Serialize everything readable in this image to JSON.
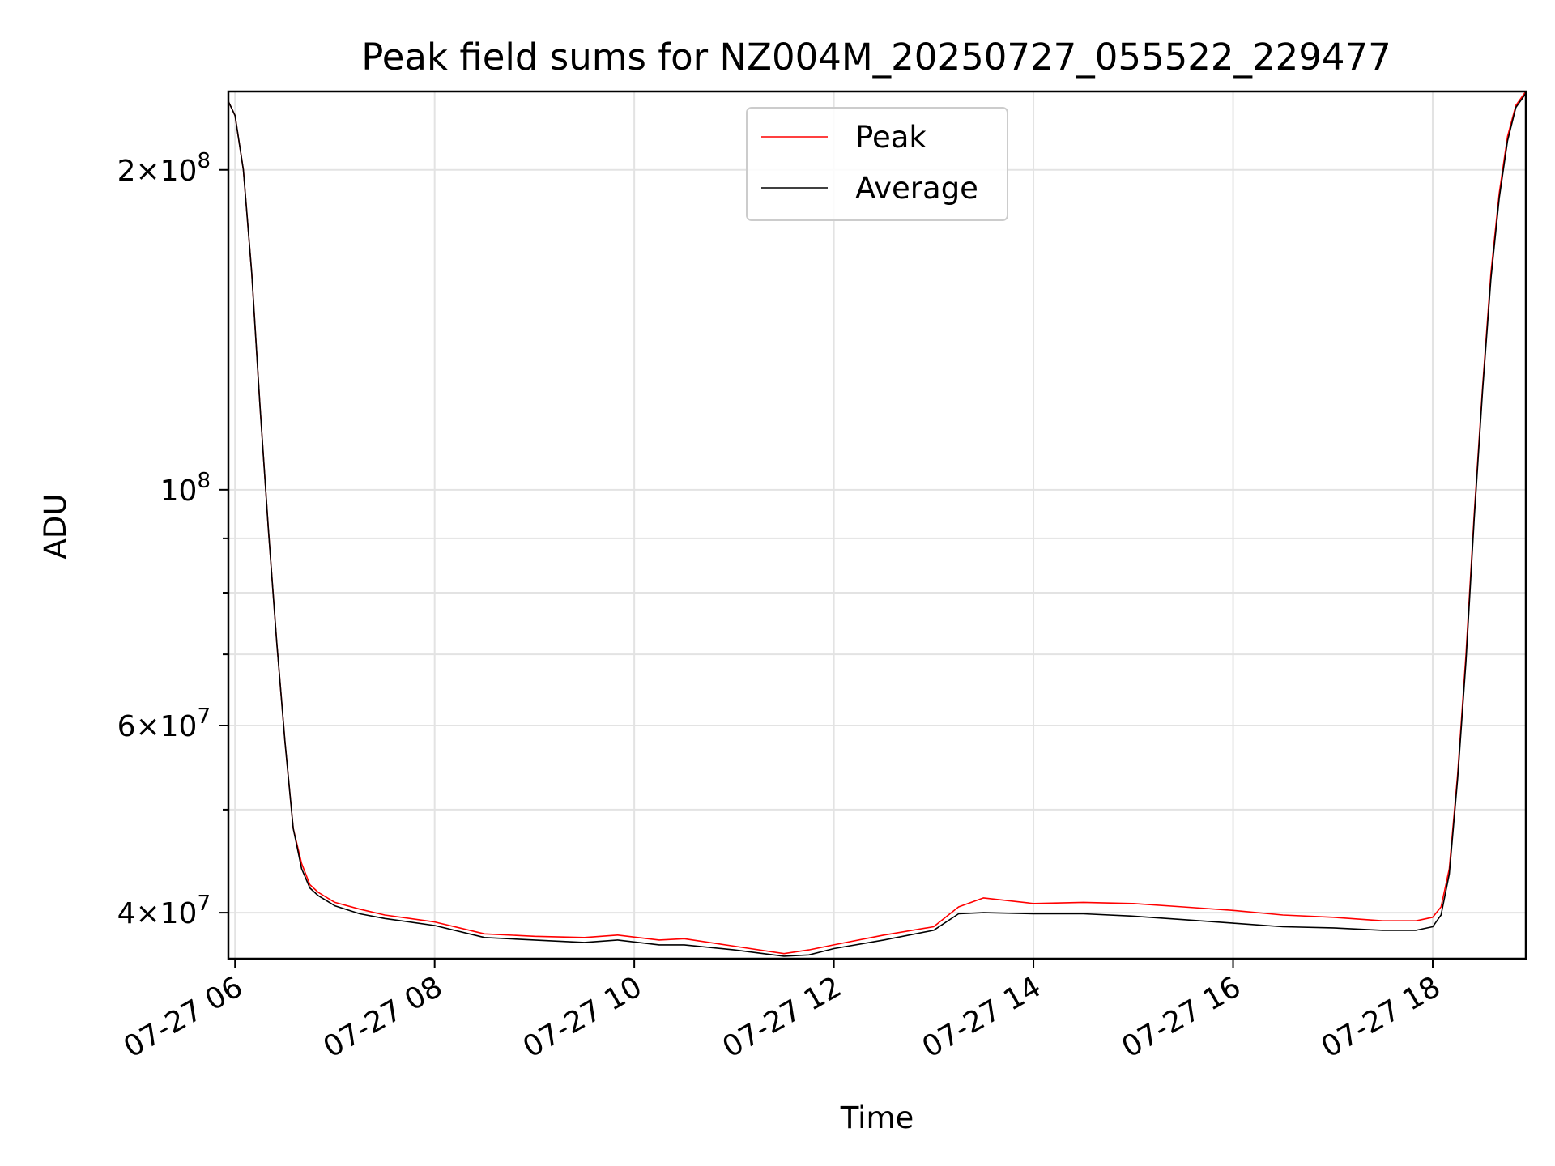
{
  "chart_data": {
    "type": "line",
    "title": "Peak field sums for NZ004M_20250727_055522_229477",
    "xlabel": "Time",
    "ylabel": "ADU",
    "yscale": "log",
    "grid": true,
    "legend_placement": "upper center",
    "x_tick_labels": [
      "07-27 06",
      "07-27 08",
      "07-27 10",
      "07-27 12",
      "07-27 14",
      "07-27 16",
      "07-27 18"
    ],
    "xlim": [
      "2025-07-27T05:56",
      "2025-07-27T18:56"
    ],
    "y_tick_labels": [
      {
        "value": 40000000,
        "mantissa": "4",
        "exponent": "7"
      },
      {
        "value": 60000000,
        "mantissa": "6",
        "exponent": "7"
      },
      {
        "value": 100000000,
        "mantissa": "",
        "exponent": "8"
      },
      {
        "value": 200000000,
        "mantissa": "2",
        "exponent": "8"
      }
    ],
    "ylim": [
      36200000,
      237000000
    ],
    "series": [
      {
        "name": "Peak",
        "color": "#ff0000",
        "x": [
          "2025-07-27T05:56",
          "2025-07-27T06:00",
          "2025-07-27T06:05",
          "2025-07-27T06:10",
          "2025-07-27T06:15",
          "2025-07-27T06:20",
          "2025-07-27T06:25",
          "2025-07-27T06:30",
          "2025-07-27T06:35",
          "2025-07-27T06:40",
          "2025-07-27T06:45",
          "2025-07-27T06:50",
          "2025-07-27T07:00",
          "2025-07-27T07:15",
          "2025-07-27T07:30",
          "2025-07-27T08:00",
          "2025-07-27T08:30",
          "2025-07-27T09:00",
          "2025-07-27T09:30",
          "2025-07-27T09:50",
          "2025-07-27T10:15",
          "2025-07-27T10:30",
          "2025-07-27T11:00",
          "2025-07-27T11:30",
          "2025-07-27T11:45",
          "2025-07-27T12:00",
          "2025-07-27T12:30",
          "2025-07-27T13:00",
          "2025-07-27T13:15",
          "2025-07-27T13:30",
          "2025-07-27T14:00",
          "2025-07-27T14:30",
          "2025-07-27T15:00",
          "2025-07-27T15:30",
          "2025-07-27T16:00",
          "2025-07-27T16:30",
          "2025-07-27T17:00",
          "2025-07-27T17:30",
          "2025-07-27T17:50",
          "2025-07-27T18:00",
          "2025-07-27T18:05",
          "2025-07-27T18:10",
          "2025-07-27T18:15",
          "2025-07-27T18:20",
          "2025-07-27T18:25",
          "2025-07-27T18:30",
          "2025-07-27T18:35",
          "2025-07-27T18:40",
          "2025-07-27T18:45",
          "2025-07-27T18:50",
          "2025-07-27T18:56"
        ],
        "y": [
          232000000,
          225000000,
          200000000,
          160000000,
          120000000,
          92000000,
          72000000,
          58000000,
          48000000,
          44500000,
          42500000,
          41800000,
          40900000,
          40300000,
          39800000,
          39200000,
          38200000,
          38000000,
          37900000,
          38100000,
          37700000,
          37800000,
          37200000,
          36600000,
          36900000,
          37300000,
          38100000,
          38800000,
          40500000,
          41300000,
          40800000,
          40900000,
          40800000,
          40500000,
          40200000,
          39800000,
          39600000,
          39300000,
          39300000,
          39600000,
          40500000,
          44000000,
          54000000,
          70000000,
          95000000,
          125000000,
          160000000,
          190000000,
          215000000,
          230000000,
          237000000
        ]
      },
      {
        "name": "Average",
        "color": "#000000",
        "x": [
          "2025-07-27T05:56",
          "2025-07-27T06:00",
          "2025-07-27T06:05",
          "2025-07-27T06:10",
          "2025-07-27T06:15",
          "2025-07-27T06:20",
          "2025-07-27T06:25",
          "2025-07-27T06:30",
          "2025-07-27T06:35",
          "2025-07-27T06:40",
          "2025-07-27T06:45",
          "2025-07-27T06:50",
          "2025-07-27T07:00",
          "2025-07-27T07:15",
          "2025-07-27T07:30",
          "2025-07-27T08:00",
          "2025-07-27T08:30",
          "2025-07-27T09:00",
          "2025-07-27T09:30",
          "2025-07-27T09:50",
          "2025-07-27T10:15",
          "2025-07-27T10:30",
          "2025-07-27T11:00",
          "2025-07-27T11:30",
          "2025-07-27T11:45",
          "2025-07-27T12:00",
          "2025-07-27T12:30",
          "2025-07-27T13:00",
          "2025-07-27T13:15",
          "2025-07-27T13:30",
          "2025-07-27T14:00",
          "2025-07-27T14:30",
          "2025-07-27T15:00",
          "2025-07-27T15:30",
          "2025-07-27T16:00",
          "2025-07-27T16:30",
          "2025-07-27T17:00",
          "2025-07-27T17:30",
          "2025-07-27T17:50",
          "2025-07-27T18:00",
          "2025-07-27T18:05",
          "2025-07-27T18:10",
          "2025-07-27T18:15",
          "2025-07-27T18:20",
          "2025-07-27T18:25",
          "2025-07-27T18:30",
          "2025-07-27T18:35",
          "2025-07-27T18:40",
          "2025-07-27T18:45",
          "2025-07-27T18:50",
          "2025-07-27T18:56"
        ],
        "y": [
          232000000,
          225000000,
          200000000,
          160000000,
          120000000,
          92000000,
          72000000,
          58000000,
          48000000,
          44000000,
          42200000,
          41500000,
          40600000,
          39900000,
          39500000,
          38900000,
          37900000,
          37700000,
          37500000,
          37700000,
          37300000,
          37300000,
          36900000,
          36400000,
          36500000,
          37000000,
          37700000,
          38500000,
          39900000,
          40000000,
          39900000,
          39900000,
          39700000,
          39400000,
          39100000,
          38800000,
          38700000,
          38500000,
          38500000,
          38800000,
          39800000,
          43500000,
          53500000,
          69000000,
          94000000,
          124000000,
          158000000,
          188000000,
          213000000,
          229000000,
          236000000
        ]
      }
    ]
  }
}
